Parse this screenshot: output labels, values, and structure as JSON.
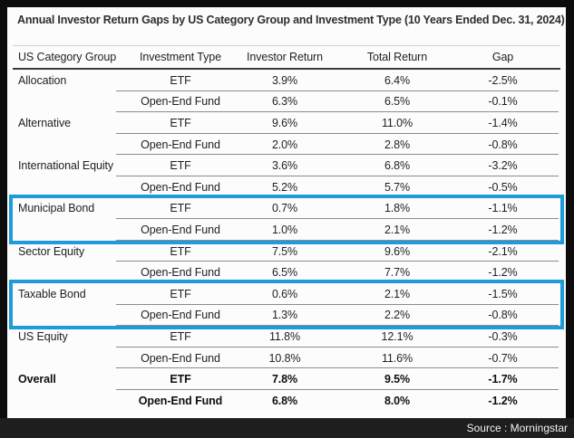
{
  "colors": {
    "highlight": "#1e9bd8",
    "frame_background": "#0c0c0c",
    "source_bar_background": "#1e1e1e"
  },
  "chart_data": {
    "type": "table",
    "title": "Annual Investor Return Gaps by US Category Group and Investment Type (10 Years Ended Dec. 31, 2024)",
    "columns": [
      "US Category Group",
      "Investment Type",
      "Investor Return",
      "Total Return",
      "Gap"
    ],
    "rows": [
      [
        "Allocation",
        "ETF",
        "3.9%",
        "6.4%",
        "-2.5%"
      ],
      [
        "",
        "Open-End Fund",
        "6.3%",
        "6.5%",
        "-0.1%"
      ],
      [
        "Alternative",
        "ETF",
        "9.6%",
        "11.0%",
        "-1.4%"
      ],
      [
        "",
        "Open-End Fund",
        "2.0%",
        "2.8%",
        "-0.8%"
      ],
      [
        "International Equity",
        "ETF",
        "3.6%",
        "6.8%",
        "-3.2%"
      ],
      [
        "",
        "Open-End Fund",
        "5.2%",
        "5.7%",
        "-0.5%"
      ],
      [
        "Municipal Bond",
        "ETF",
        "0.7%",
        "1.8%",
        "-1.1%"
      ],
      [
        "",
        "Open-End Fund",
        "1.0%",
        "2.1%",
        "-1.2%"
      ],
      [
        "Sector Equity",
        "ETF",
        "7.5%",
        "9.6%",
        "-2.1%"
      ],
      [
        "",
        "Open-End Fund",
        "6.5%",
        "7.7%",
        "-1.2%"
      ],
      [
        "Taxable Bond",
        "ETF",
        "0.6%",
        "2.1%",
        "-1.5%"
      ],
      [
        "",
        "Open-End Fund",
        "1.3%",
        "2.2%",
        "-0.8%"
      ],
      [
        "US Equity",
        "ETF",
        "11.8%",
        "12.1%",
        "-0.3%"
      ],
      [
        "",
        "Open-End Fund",
        "10.8%",
        "11.6%",
        "-0.7%"
      ],
      [
        "Overall",
        "ETF",
        "7.8%",
        "9.5%",
        "-1.7%"
      ],
      [
        "",
        "Open-End Fund",
        "6.8%",
        "8.0%",
        "-1.2%"
      ]
    ],
    "highlighted_groups": [
      "Municipal Bond",
      "Taxable Bond"
    ],
    "bold_group": "Overall",
    "source": "Source : Morningstar"
  }
}
